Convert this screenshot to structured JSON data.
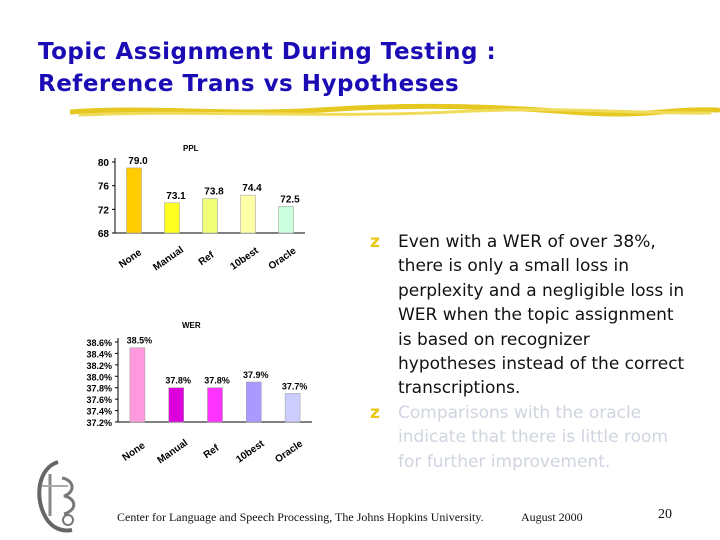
{
  "title": {
    "line1": "Topic Assignment During Testing :",
    "line2": "Reference Trans vs Hypotheses"
  },
  "bullets": [
    "Even with a WER of over 38%, there is only a small loss in perplexity and a negligible loss in WER when the topic assignment is based on recognizer hypotheses instead of the correct transcriptions.",
    "Comparisons with the oracle indicate that there is little room for further improvement."
  ],
  "bullet_marker": "z",
  "footer": {
    "center": "Center for Language and Speech Processing, The Johns Hopkins University.",
    "date": "August 2000",
    "page": "20"
  },
  "colors": {
    "title": "#1a0bb5",
    "bullet_marker": "#e8c814",
    "underline": "#e6c822"
  },
  "chart_data": [
    {
      "type": "bar",
      "title": "PPL",
      "categories": [
        "None",
        "Manual",
        "Ref",
        "10best",
        "Oracle"
      ],
      "values": [
        79.0,
        73.1,
        73.8,
        74.4,
        72.5
      ],
      "value_labels": [
        "79.0",
        "73.1",
        "73.8",
        "74.4",
        "72.5"
      ],
      "bar_colors": [
        "#ffcc00",
        "#ffff22",
        "#eeff77",
        "#ffffaa",
        "#ccffdd"
      ],
      "yticks": [
        "80",
        "76",
        "72",
        "68"
      ],
      "ylim": [
        68,
        80
      ],
      "grid": false
    },
    {
      "type": "bar",
      "title": "WER",
      "categories": [
        "None",
        "Manual",
        "Ref",
        "10best",
        "Oracle"
      ],
      "values": [
        38.5,
        37.8,
        37.8,
        37.9,
        37.7
      ],
      "value_labels": [
        "38.5%",
        "37.8%",
        "37.8%",
        "37.9%",
        "37.7%"
      ],
      "bar_colors": [
        "#ff99dd",
        "#dd00dd",
        "#ff33ff",
        "#aa99ff",
        "#ccccff"
      ],
      "yticks": [
        "38.6%",
        "38.4%",
        "38.2%",
        "38.0%",
        "37.8%",
        "37.6%",
        "37.4%",
        "37.2%"
      ],
      "ylim": [
        37.2,
        38.6
      ],
      "grid": false
    }
  ]
}
